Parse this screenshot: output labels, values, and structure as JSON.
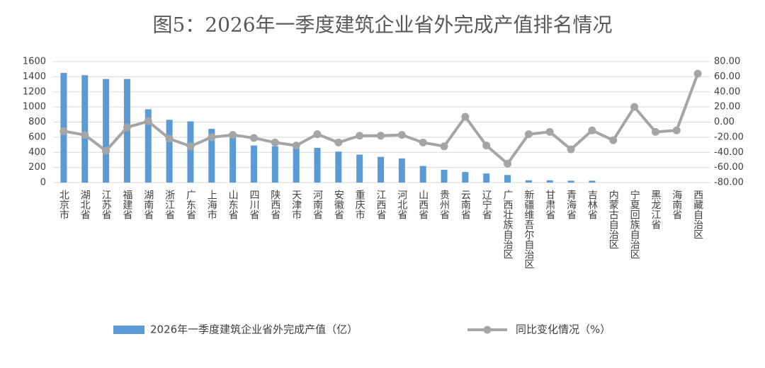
{
  "chart_data": {
    "type": "bar-line",
    "title": "图5：2026年一季度建筑企业省外完成产值排名情况",
    "categories": [
      "北京市",
      "湖北省",
      "江苏省",
      "福建省",
      "湖南省",
      "浙江省",
      "广东省",
      "上海市",
      "山东省",
      "四川省",
      "陕西省",
      "天津市",
      "河南省",
      "安徽省",
      "重庆市",
      "江西省",
      "河北省",
      "山西省",
      "贵州省",
      "云南省",
      "辽宁省",
      "广西壮族自治区",
      "新疆维吾尔自治区",
      "甘肃省",
      "青海省",
      "吉林省",
      "内蒙古自治区",
      "宁夏回族自治区",
      "黑龙江省",
      "海南省",
      "西藏自治区"
    ],
    "series": [
      {
        "name": "2026年一季度建筑企业省外完成产值（亿）",
        "color": "#5b9bd5",
        "type": "bar",
        "values": [
          1450,
          1420,
          1370,
          1370,
          970,
          830,
          810,
          710,
          630,
          490,
          480,
          470,
          460,
          410,
          370,
          340,
          320,
          220,
          170,
          140,
          120,
          100,
          30,
          30,
          25,
          25,
          0,
          0,
          0,
          0,
          0
        ]
      },
      {
        "name": "同比变化情况（%）",
        "color": "#a5a5a5",
        "type": "line",
        "axis": "y2",
        "values": [
          -12,
          -17,
          -38,
          -7,
          1,
          -22,
          -32,
          -20,
          -17,
          -21,
          -27,
          -31,
          -16,
          -27,
          -18,
          -18,
          -17,
          -27,
          -32,
          7,
          -31,
          -55,
          -16,
          -13,
          -36,
          -11,
          -24,
          20,
          -13,
          -11,
          64
        ]
      }
    ],
    "ylim": [
      0,
      1600
    ],
    "yticks": [
      0,
      200,
      400,
      600,
      800,
      1000,
      1200,
      1400,
      1600
    ],
    "y2lim": [
      -80,
      80
    ],
    "y2ticks": [
      {
        "value": -80,
        "label": "-80.00"
      },
      {
        "value": -60,
        "label": "-60.00"
      },
      {
        "value": -40,
        "label": "-40.00"
      },
      {
        "value": -20,
        "label": "-20.00"
      },
      {
        "value": 0,
        "label": "0.00"
      },
      {
        "value": 20,
        "label": "20.00"
      },
      {
        "value": 40,
        "label": "40.00"
      },
      {
        "value": 60,
        "label": "60.00"
      },
      {
        "value": 80,
        "label": "80.00"
      }
    ],
    "grid": true
  }
}
